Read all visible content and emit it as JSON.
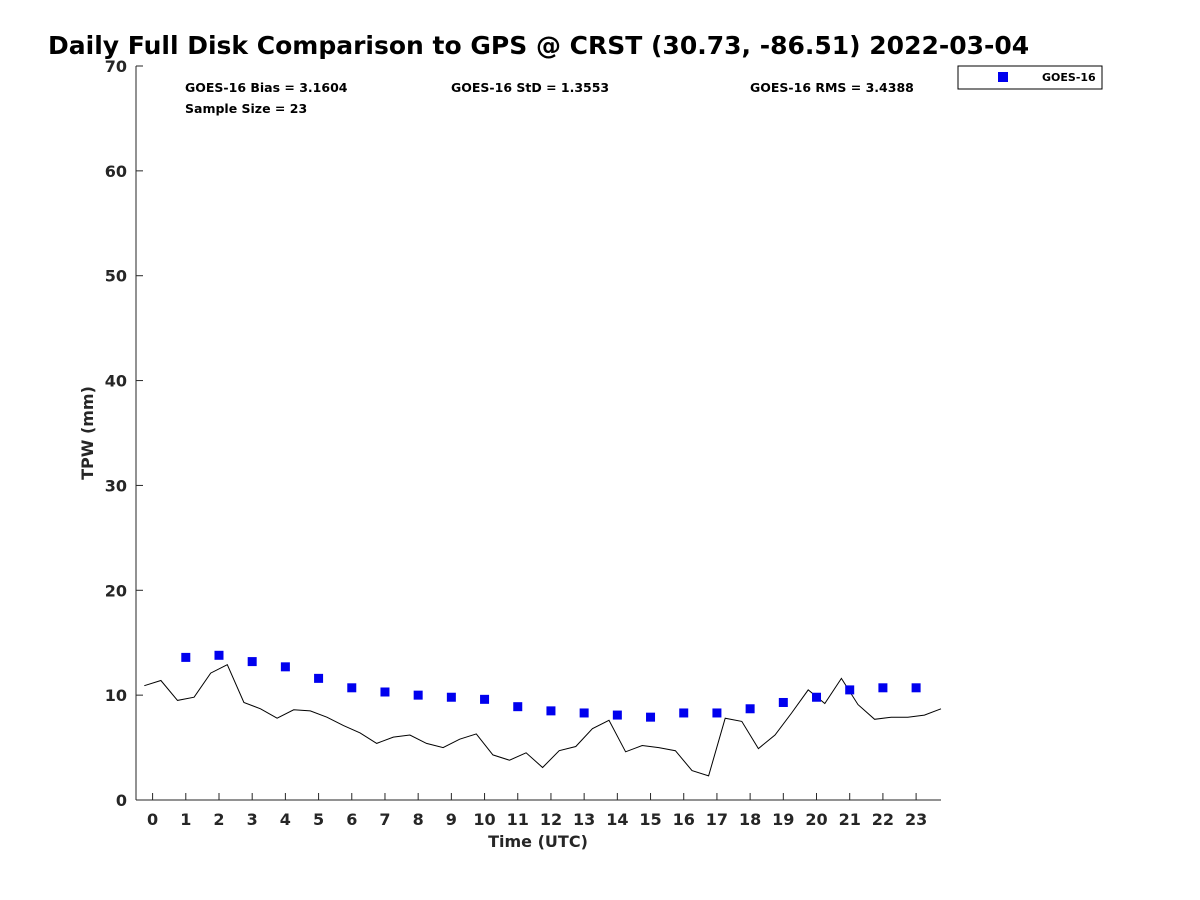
{
  "chart_data": {
    "type": "scatter",
    "title": "Daily Full Disk Comparison to GPS @ CRST (30.73, -86.51) 2022-03-04",
    "xlabel": "Time (UTC)",
    "ylabel": "TPW (mm)",
    "xlim": [
      -0.5,
      23.75
    ],
    "ylim": [
      0,
      70
    ],
    "x_ticks": [
      0,
      1,
      2,
      3,
      4,
      5,
      6,
      7,
      8,
      9,
      10,
      11,
      12,
      13,
      14,
      15,
      16,
      17,
      18,
      19,
      20,
      21,
      22,
      23
    ],
    "y_ticks": [
      0,
      10,
      20,
      30,
      40,
      50,
      60,
      70
    ],
    "grid": false,
    "legend_position": "top-right (outside plot)",
    "stats": {
      "bias": "GOES-16 Bias = 3.1604",
      "std": "GOES-16 StD = 1.3553",
      "rms": "GOES-16 RMS = 3.4388",
      "sample": "Sample Size = 23"
    },
    "series": [
      {
        "name": "GOES-16",
        "kind": "markers",
        "color": "#0000ee",
        "x": [
          1,
          2,
          3,
          4,
          5,
          6,
          7,
          8,
          9,
          10,
          11,
          12,
          13,
          14,
          15,
          16,
          17,
          18,
          19,
          20,
          21,
          22,
          23
        ],
        "y": [
          13.6,
          13.8,
          13.2,
          12.7,
          11.6,
          10.7,
          10.3,
          10.0,
          9.8,
          9.6,
          8.9,
          8.5,
          8.3,
          8.1,
          7.9,
          8.3,
          8.3,
          8.7,
          9.3,
          9.8,
          10.5,
          10.7,
          10.7
        ]
      },
      {
        "name": "GPS",
        "kind": "line",
        "color": "#000000",
        "x": [
          -0.25,
          0.25,
          0.75,
          1.25,
          1.75,
          2.25,
          2.75,
          3.25,
          3.75,
          4.25,
          4.75,
          5.25,
          5.75,
          6.25,
          6.75,
          7.25,
          7.75,
          8.25,
          8.75,
          9.25,
          9.75,
          10.25,
          10.75,
          11.25,
          11.75,
          12.25,
          12.75,
          13.25,
          13.75,
          14.25,
          14.75,
          15.25,
          15.75,
          16.25,
          16.75,
          17.25,
          17.75,
          18.25,
          18.75,
          19.25,
          19.75,
          20.25,
          20.75,
          21.25,
          21.75,
          22.25,
          22.75,
          23.25,
          23.75
        ],
        "y": [
          10.9,
          11.4,
          9.5,
          9.8,
          12.1,
          12.9,
          9.3,
          8.7,
          7.8,
          8.6,
          8.5,
          7.9,
          7.1,
          6.4,
          5.4,
          6.0,
          6.2,
          5.4,
          5.0,
          5.8,
          6.3,
          4.3,
          3.8,
          4.5,
          3.1,
          4.7,
          5.1,
          6.8,
          7.6,
          4.6,
          5.2,
          5.0,
          4.7,
          2.8,
          2.3,
          7.8,
          7.5,
          4.9,
          6.2,
          8.3,
          10.5,
          9.2,
          11.6,
          9.1,
          7.7,
          7.9,
          7.9,
          8.1,
          8.7
        ]
      }
    ]
  }
}
